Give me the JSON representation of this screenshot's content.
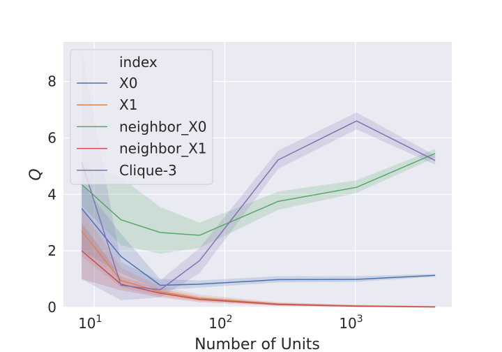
{
  "chart_data": {
    "type": "line",
    "xlabel": "Number of Units",
    "ylabel": "Q",
    "xscale": "log",
    "ylim": [
      0,
      9.4
    ],
    "xlim": [
      5.8,
      5500
    ],
    "grid": true,
    "legend_placement": "upper-left",
    "legend_title": "index",
    "x_ticks": [
      {
        "value": 10,
        "base": "10",
        "exp": "1"
      },
      {
        "value": 100,
        "base": "10",
        "exp": "2"
      },
      {
        "value": 1000,
        "base": "10",
        "exp": "3"
      }
    ],
    "y_ticks": [
      0,
      2,
      4,
      6,
      8
    ],
    "x": [
      8,
      16,
      32,
      64,
      256,
      1024,
      4096
    ],
    "series": [
      {
        "name": "X0",
        "color": "#4c72b0",
        "values": [
          3.5,
          1.8,
          0.78,
          0.82,
          0.98,
          0.99,
          1.13
        ],
        "lower": [
          2.0,
          1.2,
          0.6,
          0.7,
          0.88,
          0.9,
          1.08
        ],
        "upper": [
          4.4,
          2.6,
          1.0,
          0.95,
          1.1,
          1.1,
          1.18
        ]
      },
      {
        "name": "X1",
        "color": "#dd8452",
        "values": [
          2.7,
          0.95,
          0.55,
          0.32,
          0.12,
          0.05,
          0.02
        ],
        "lower": [
          1.8,
          0.7,
          0.4,
          0.22,
          0.07,
          0.02,
          0.0
        ],
        "upper": [
          3.5,
          1.4,
          0.75,
          0.45,
          0.18,
          0.09,
          0.05
        ]
      },
      {
        "name": "neighbor_X0",
        "color": "#55a868",
        "values": [
          4.35,
          3.1,
          2.65,
          2.55,
          3.75,
          4.25,
          5.45
        ],
        "lower": [
          3.6,
          2.2,
          1.9,
          2.1,
          3.45,
          4.05,
          5.3
        ],
        "upper": [
          5.0,
          4.6,
          3.55,
          3.0,
          4.1,
          4.5,
          5.6
        ]
      },
      {
        "name": "neighbor_X1",
        "color": "#c44e52",
        "values": [
          2.0,
          0.82,
          0.5,
          0.28,
          0.1,
          0.04,
          0.01
        ],
        "lower": [
          1.0,
          0.6,
          0.35,
          0.18,
          0.05,
          0.01,
          0.0
        ],
        "upper": [
          3.0,
          1.1,
          0.65,
          0.38,
          0.15,
          0.08,
          0.04
        ]
      },
      {
        "name": "Clique-3",
        "color": "#8172b3",
        "values": [
          5.15,
          0.78,
          0.62,
          1.65,
          5.22,
          6.6,
          5.2
        ],
        "lower": [
          1.0,
          0.25,
          0.35,
          1.2,
          4.9,
          6.3,
          5.05
        ],
        "upper": [
          9.1,
          1.6,
          0.95,
          2.1,
          5.55,
          6.9,
          5.38
        ]
      }
    ]
  }
}
